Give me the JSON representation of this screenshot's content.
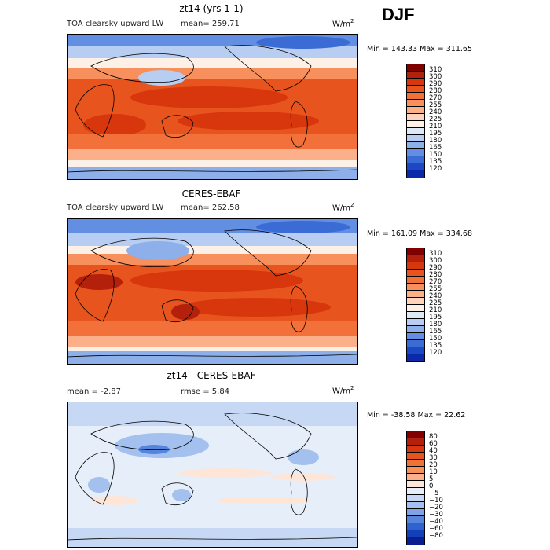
{
  "season": "DJF",
  "units_base": "W/m",
  "units_exp": "2",
  "panels": [
    {
      "title": "zt14 (yrs 1-1)",
      "subtitle": "TOA clearsky upward LW",
      "mean_label": "mean= 259.71",
      "minmax": "Min = 143.33 Max = 311.65",
      "kind": "model"
    },
    {
      "title": "CERES-EBAF",
      "subtitle": "TOA clearsky upward LW",
      "mean_label": "mean= 262.58",
      "minmax": "Min = 161.09 Max = 334.68",
      "kind": "obs"
    },
    {
      "title": "zt14 - CERES-EBAF",
      "mean_label": "mean =   -2.87",
      "rmse_label": "rmse =    5.84",
      "minmax": "Min = -38.58 Max =  22.62",
      "kind": "diff"
    }
  ],
  "colorbars": {
    "abs": {
      "labels": [
        "310",
        "300",
        "290",
        "280",
        "270",
        "255",
        "240",
        "225",
        "210",
        "195",
        "180",
        "165",
        "150",
        "135",
        "120"
      ],
      "colors": [
        "#800000",
        "#b3200b",
        "#d8360c",
        "#e8541e",
        "#f2713a",
        "#f7905c",
        "#fbb08a",
        "#fdd4bc",
        "#fdf0e6",
        "#dfe8f7",
        "#b7cdf1",
        "#8dafea",
        "#628fe2",
        "#3b6cd6",
        "#1c48c6",
        "#0a28a8"
      ]
    },
    "diff": {
      "labels": [
        "80",
        "60",
        "40",
        "30",
        "20",
        "10",
        "5",
        "0",
        "−5",
        "−10",
        "−20",
        "−30",
        "−40",
        "−60",
        "−80"
      ],
      "colors": [
        "#800000",
        "#b3200b",
        "#d8360c",
        "#e8541e",
        "#f2713a",
        "#f7905c",
        "#fbb08a",
        "#fde6d8",
        "#e6eefa",
        "#c6d8f4",
        "#a3c0ee",
        "#7fa4e6",
        "#5585dc",
        "#2f62cf",
        "#1340b8",
        "#0a1e90"
      ]
    }
  }
}
